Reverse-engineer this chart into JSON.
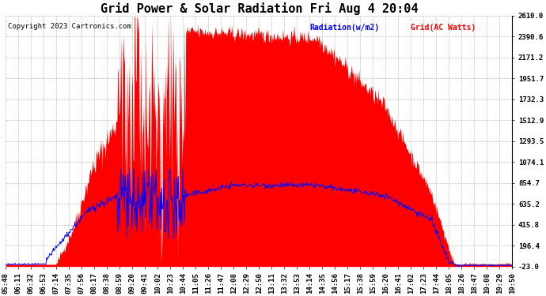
{
  "title": "Grid Power & Solar Radiation Fri Aug 4 20:04",
  "copyright": "Copyright 2023 Cartronics.com",
  "legend_radiation": "Radiation(w/m2)",
  "legend_grid": "Grid(AC Watts)",
  "background_color": "#ffffff",
  "plot_bg_color": "#ffffff",
  "grid_color": "#c0c0c0",
  "radiation_color": "#ff0000",
  "grid_line_color": "#0000ff",
  "y_min": -23.0,
  "y_max": 2610.0,
  "yticks": [
    2610.0,
    2390.6,
    2171.2,
    1951.7,
    1732.3,
    1512.9,
    1293.5,
    1074.1,
    854.7,
    635.2,
    415.8,
    196.4,
    -23.0
  ],
  "x_labels": [
    "05:48",
    "06:11",
    "06:32",
    "06:53",
    "07:14",
    "07:35",
    "07:56",
    "08:17",
    "08:38",
    "08:59",
    "09:20",
    "09:41",
    "10:02",
    "10:23",
    "10:44",
    "11:05",
    "11:26",
    "11:47",
    "12:08",
    "12:29",
    "12:50",
    "13:11",
    "13:32",
    "13:53",
    "14:14",
    "14:35",
    "14:56",
    "15:17",
    "15:38",
    "15:59",
    "16:20",
    "16:41",
    "17:02",
    "17:23",
    "17:44",
    "18:05",
    "18:26",
    "18:47",
    "19:08",
    "19:29",
    "19:50"
  ],
  "title_fontsize": 11,
  "tick_fontsize": 6.5,
  "copyright_fontsize": 6.5
}
